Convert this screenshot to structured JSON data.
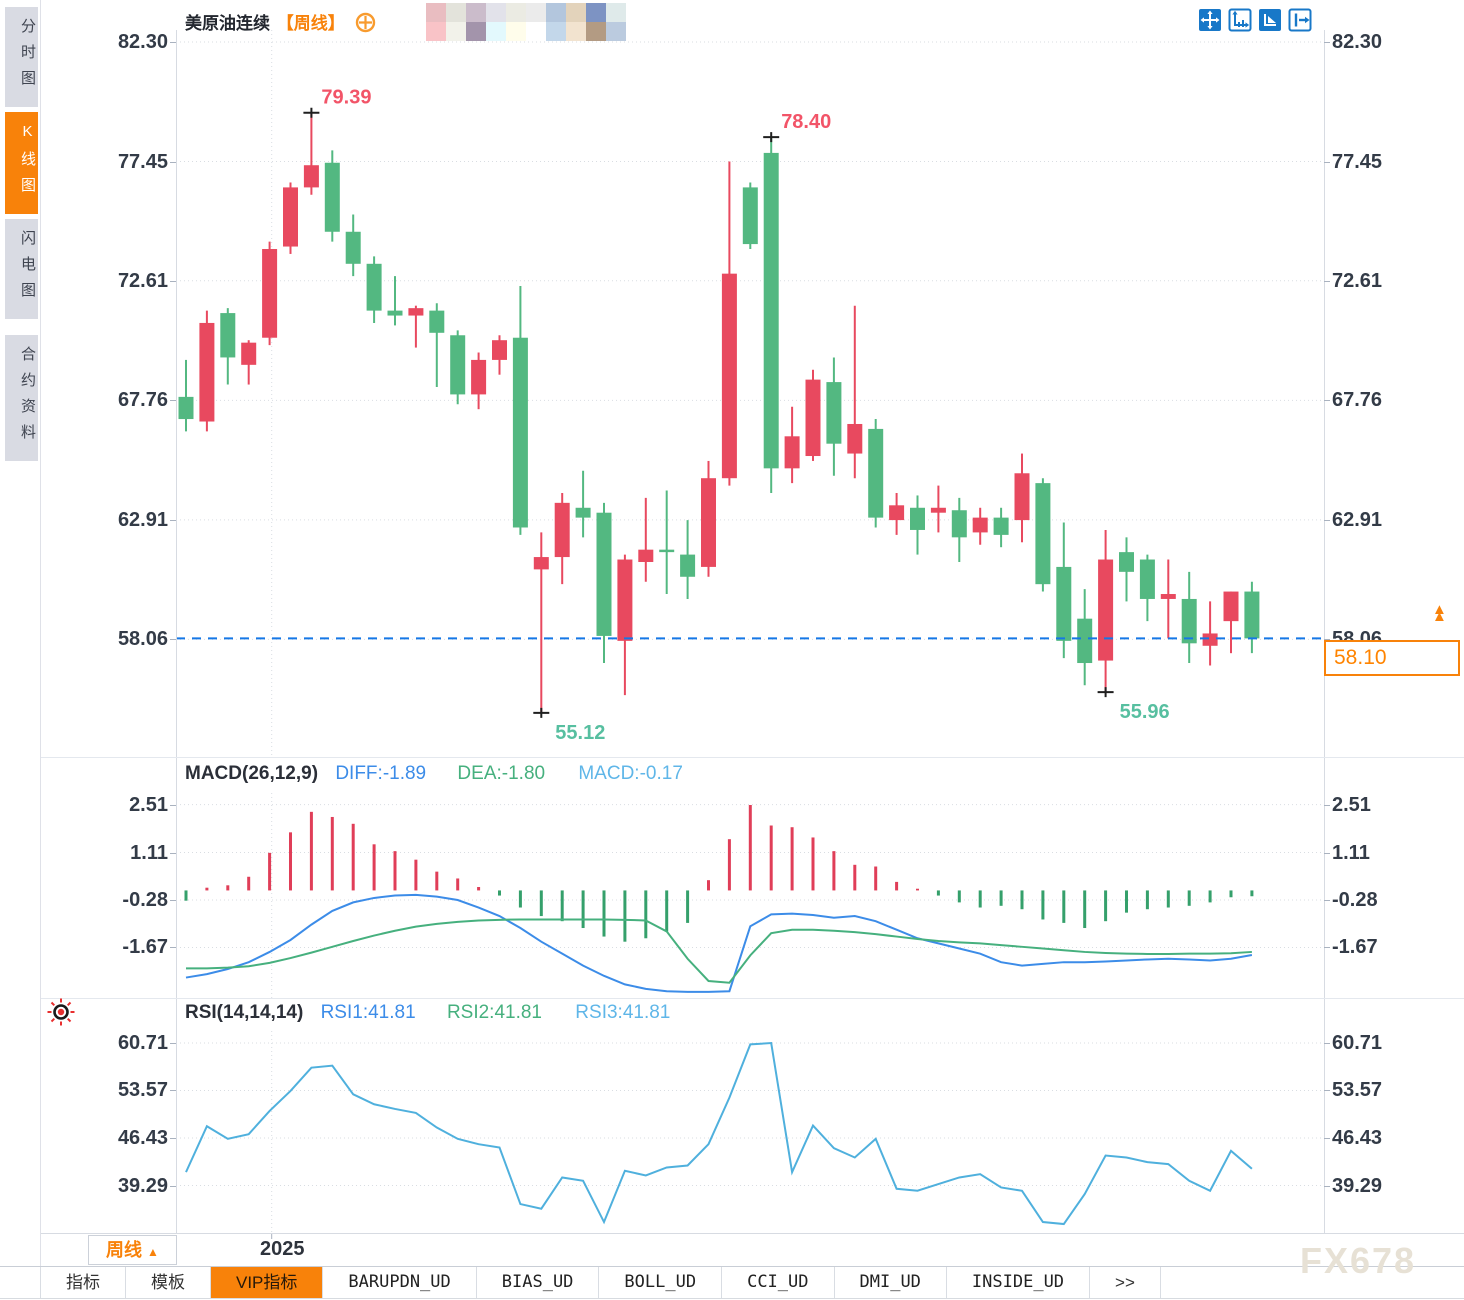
{
  "sidebar": {
    "items": [
      {
        "label": "分时图",
        "active": false
      },
      {
        "label": "K线图",
        "active": true
      },
      {
        "label": "闪电图",
        "active": false
      },
      {
        "label": "合约资料",
        "active": false,
        "group_start": true
      }
    ]
  },
  "header": {
    "title": "美原油连续",
    "period_tag": "【周线】",
    "mosaic_colors": [
      "#e9bdc1",
      "#e3e3db",
      "#cbbccb",
      "#e2e2ea",
      "#ebebe3",
      "#ebebeb",
      "#b3c6dd",
      "#e3d3bb",
      "#7d93c3",
      "#dfeaea",
      "#f9c3c7",
      "#f2f2ea",
      "#a394ab",
      "#e3f9fd",
      "#fffdeb",
      "#ffffff",
      "#c3d7ea",
      "#f2e3cf",
      "#b39b83",
      "#bbcbdf"
    ]
  },
  "toolbar": {
    "icons": [
      {
        "name": "crosshair-pan-icon",
        "filled": true
      },
      {
        "name": "axis-scale-icon",
        "filled": false
      },
      {
        "name": "axis-pointer-icon",
        "filled": true
      },
      {
        "name": "collapse-right-icon",
        "filled": false
      }
    ]
  },
  "macd_header": {
    "name": "MACD(26,12,9)",
    "diff_label": "DIFF:-1.89",
    "dea_label": "DEA:-1.80",
    "macd_label": "MACD:-0.17"
  },
  "rsi_header": {
    "name": "RSI(14,14,14)",
    "rsi1_label": "RSI1:41.81",
    "rsi2_label": "RSI2:41.81",
    "rsi3_label": "RSI3:41.81"
  },
  "price_tag": {
    "value": "58.10",
    "direction_icon": "▲"
  },
  "period_selector": {
    "label": "周线",
    "arrow": "▲"
  },
  "x_axis": {
    "label": "2025"
  },
  "watermark": "FX678",
  "tabs": [
    {
      "label": "指标",
      "active": false,
      "mono": false
    },
    {
      "label": "模板",
      "active": false,
      "mono": false
    },
    {
      "label": "VIP指标",
      "active": true,
      "mono": false
    },
    {
      "label": "BARUPDN_UD",
      "active": false,
      "mono": true
    },
    {
      "label": "BIAS_UD",
      "active": false,
      "mono": true
    },
    {
      "label": "BOLL_UD",
      "active": false,
      "mono": true
    },
    {
      "label": "CCI_UD",
      "active": false,
      "mono": true
    },
    {
      "label": "DMI_UD",
      "active": false,
      "mono": true
    },
    {
      "label": "INSIDE_UD",
      "active": false,
      "mono": true
    },
    {
      "label": "&gt;&gt;",
      "active": false,
      "mono": false,
      "plain": ">>"
    }
  ],
  "colors": {
    "bull": "#e8495f",
    "bear": "#53b881",
    "hist_up": "#e03e58",
    "hist_down": "#35a06b",
    "diff_line": "#3c8ce8",
    "dea_line": "#46b07e",
    "rsi_line": "#4fb0dd",
    "dashed_line": "#1577e6",
    "accent_orange": "#f8820a",
    "annotation_high": "#f25468",
    "annotation_low": "#57bfa0",
    "grid": "#d9dde2"
  },
  "chart_data": [
    {
      "type": "candlestick",
      "title": "美原油连续 周线",
      "yticks": [
        82.3,
        77.45,
        72.61,
        67.76,
        62.91,
        58.06
      ],
      "ylim": [
        53.4,
        82.8
      ],
      "last_price": 58.1,
      "x_year_tick": {
        "label": "2025",
        "candle_index": 4.1
      },
      "annotations": [
        {
          "index": 6,
          "point": "high",
          "label": "79.39"
        },
        {
          "index": 17,
          "point": "low",
          "label": "55.12"
        },
        {
          "index": 28,
          "point": "high",
          "label": "78.40"
        },
        {
          "index": 44,
          "point": "low",
          "label": "55.96"
        }
      ],
      "candles": [
        [
          67.9,
          69.4,
          66.5,
          67.0
        ],
        [
          66.9,
          71.4,
          66.5,
          70.9
        ],
        [
          71.3,
          71.5,
          68.4,
          69.5
        ],
        [
          69.2,
          70.2,
          68.4,
          70.1
        ],
        [
          70.3,
          74.2,
          70.0,
          73.9
        ],
        [
          74.0,
          76.6,
          73.7,
          76.4
        ],
        [
          76.4,
          79.39,
          76.1,
          77.3
        ],
        [
          77.4,
          77.9,
          74.2,
          74.6
        ],
        [
          74.6,
          75.3,
          72.8,
          73.3
        ],
        [
          73.3,
          73.6,
          70.9,
          71.4
        ],
        [
          71.4,
          72.8,
          70.8,
          71.2
        ],
        [
          71.2,
          71.6,
          69.9,
          71.5
        ],
        [
          71.4,
          71.7,
          68.3,
          70.5
        ],
        [
          70.4,
          70.6,
          67.6,
          68.0
        ],
        [
          68.0,
          69.7,
          67.4,
          69.4
        ],
        [
          69.4,
          70.4,
          68.8,
          70.2
        ],
        [
          70.3,
          72.4,
          62.3,
          62.6
        ],
        [
          60.9,
          62.4,
          55.12,
          61.4
        ],
        [
          61.4,
          64.0,
          60.3,
          63.6
        ],
        [
          63.4,
          64.9,
          62.2,
          63.0
        ],
        [
          63.2,
          63.6,
          57.1,
          58.2
        ],
        [
          58.0,
          61.5,
          55.8,
          61.3
        ],
        [
          61.2,
          63.8,
          60.4,
          61.7
        ],
        [
          61.7,
          64.1,
          59.9,
          61.6
        ],
        [
          61.5,
          62.9,
          59.7,
          60.6
        ],
        [
          61.0,
          65.3,
          60.6,
          64.6
        ],
        [
          64.6,
          77.45,
          64.3,
          72.9
        ],
        [
          76.4,
          76.6,
          73.9,
          74.1
        ],
        [
          77.8,
          78.4,
          64.0,
          65.0
        ],
        [
          65.0,
          67.5,
          64.4,
          66.3
        ],
        [
          65.5,
          69.0,
          65.3,
          68.6
        ],
        [
          68.5,
          69.5,
          64.7,
          66.0
        ],
        [
          65.6,
          71.6,
          64.6,
          66.8
        ],
        [
          66.6,
          67.0,
          62.6,
          63.0
        ],
        [
          62.9,
          64.0,
          62.3,
          63.5
        ],
        [
          63.4,
          63.9,
          61.5,
          62.5
        ],
        [
          63.2,
          64.3,
          62.4,
          63.4
        ],
        [
          63.3,
          63.8,
          61.2,
          62.2
        ],
        [
          62.4,
          63.4,
          61.9,
          63.0
        ],
        [
          63.0,
          63.4,
          61.8,
          62.3
        ],
        [
          62.9,
          65.6,
          62.0,
          64.8
        ],
        [
          64.4,
          64.6,
          60.0,
          60.3
        ],
        [
          61.0,
          62.8,
          57.3,
          58.0
        ],
        [
          58.9,
          60.1,
          56.2,
          57.1
        ],
        [
          57.2,
          62.5,
          55.96,
          61.3
        ],
        [
          61.6,
          62.2,
          59.6,
          60.8
        ],
        [
          61.3,
          61.5,
          58.8,
          59.7
        ],
        [
          59.7,
          61.3,
          58.1,
          59.9
        ],
        [
          59.7,
          60.8,
          57.1,
          57.9
        ],
        [
          57.8,
          59.6,
          57.0,
          58.3
        ],
        [
          58.8,
          60.0,
          57.5,
          60.0
        ],
        [
          60.0,
          60.4,
          57.5,
          58.1
        ]
      ]
    },
    {
      "type": "macd",
      "params": "MACD(26,12,9)",
      "yticks": [
        2.51,
        1.11,
        -0.28,
        -1.67
      ],
      "diff_value": -1.89,
      "dea_value": -1.8,
      "macd_value": -0.17,
      "histogram": [
        -0.3,
        0.08,
        0.15,
        0.4,
        1.1,
        1.7,
        2.3,
        2.15,
        1.95,
        1.35,
        1.15,
        0.9,
        0.55,
        0.35,
        0.1,
        -0.15,
        -0.5,
        -0.75,
        -0.9,
        -1.1,
        -1.35,
        -1.5,
        -1.4,
        -1.2,
        -0.95,
        0.3,
        1.5,
        2.5,
        1.9,
        1.85,
        1.55,
        1.15,
        0.75,
        0.7,
        0.25,
        0.05,
        -0.15,
        -0.35,
        -0.5,
        -0.45,
        -0.55,
        -0.85,
        -0.95,
        -1.1,
        -0.9,
        -0.65,
        -0.55,
        -0.5,
        -0.45,
        -0.35,
        -0.2,
        -0.17
      ],
      "diff": [
        -2.55,
        -2.45,
        -2.3,
        -2.1,
        -1.8,
        -1.45,
        -1.0,
        -0.6,
        -0.35,
        -0.22,
        -0.15,
        -0.13,
        -0.18,
        -0.28,
        -0.5,
        -0.75,
        -1.1,
        -1.5,
        -1.85,
        -2.2,
        -2.5,
        -2.75,
        -2.88,
        -2.95,
        -2.97,
        -2.97,
        -2.95,
        -1.05,
        -0.7,
        -0.68,
        -0.72,
        -0.8,
        -0.75,
        -0.9,
        -1.15,
        -1.4,
        -1.55,
        -1.7,
        -1.85,
        -2.1,
        -2.2,
        -2.15,
        -2.1,
        -2.1,
        -2.08,
        -2.05,
        -2.02,
        -2.0,
        -2.02,
        -2.05,
        -2.0,
        -1.89
      ],
      "dea": [
        -2.28,
        -2.28,
        -2.26,
        -2.22,
        -2.12,
        -1.98,
        -1.82,
        -1.65,
        -1.48,
        -1.32,
        -1.18,
        -1.06,
        -0.98,
        -0.92,
        -0.88,
        -0.86,
        -0.85,
        -0.85,
        -0.85,
        -0.85,
        -0.85,
        -0.86,
        -0.88,
        -1.2,
        -2.0,
        -2.65,
        -2.7,
        -1.9,
        -1.25,
        -1.15,
        -1.15,
        -1.18,
        -1.22,
        -1.28,
        -1.35,
        -1.42,
        -1.48,
        -1.52,
        -1.55,
        -1.6,
        -1.65,
        -1.7,
        -1.75,
        -1.8,
        -1.83,
        -1.85,
        -1.86,
        -1.86,
        -1.85,
        -1.85,
        -1.84,
        -1.8
      ]
    },
    {
      "type": "rsi",
      "params": "RSI(14,14,14)",
      "yticks": [
        60.71,
        53.57,
        46.43,
        39.29
      ],
      "rsi1_value": 41.81,
      "rsi2_value": 41.81,
      "rsi3_value": 41.81,
      "rsi": [
        41.3,
        48.2,
        46.3,
        47.0,
        50.5,
        53.5,
        57.0,
        57.3,
        53.0,
        51.5,
        50.8,
        50.2,
        48.0,
        46.3,
        45.5,
        45.0,
        36.5,
        35.8,
        40.5,
        40.0,
        33.8,
        41.5,
        40.8,
        42.0,
        42.3,
        45.5,
        52.5,
        60.5,
        60.7,
        41.3,
        48.3,
        44.9,
        43.5,
        46.3,
        38.8,
        38.5,
        39.5,
        40.5,
        41.0,
        39.0,
        38.5,
        33.8,
        33.5,
        38.0,
        43.8,
        43.5,
        42.8,
        42.5,
        40.0,
        38.5,
        44.5,
        41.81
      ]
    }
  ]
}
